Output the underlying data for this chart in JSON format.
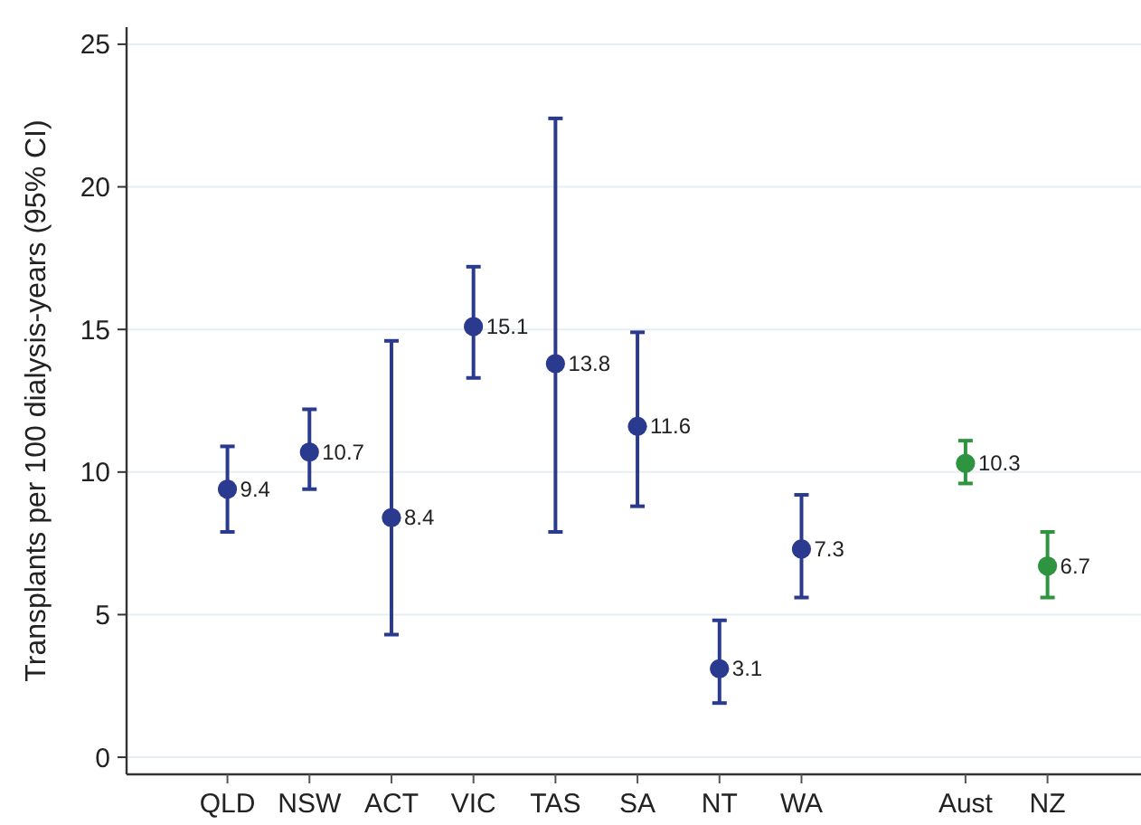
{
  "chart_data": {
    "type": "scatter",
    "ylabel": "Transplants per 100 dialysis-years (95% CI)",
    "categories": [
      "QLD",
      "NSW",
      "ACT",
      "VIC",
      "TAS",
      "SA",
      "NT",
      "WA",
      null,
      "Aust",
      "NZ"
    ],
    "series": [
      {
        "color": "#2a3a8f",
        "values": [
          9.4,
          10.7,
          8.4,
          15.1,
          13.8,
          11.6,
          3.1,
          7.3,
          null,
          null,
          null
        ],
        "errors": [
          [
            7.9,
            10.9
          ],
          [
            9.4,
            12.2
          ],
          [
            4.3,
            14.6
          ],
          [
            13.3,
            17.2
          ],
          [
            7.9,
            22.4
          ],
          [
            8.8,
            14.9
          ],
          [
            1.9,
            4.8
          ],
          [
            5.6,
            9.2
          ],
          null,
          null,
          null
        ]
      },
      {
        "color": "#2e9440",
        "values": [
          null,
          null,
          null,
          null,
          null,
          null,
          null,
          null,
          null,
          10.3,
          6.7
        ],
        "errors": [
          null,
          null,
          null,
          null,
          null,
          null,
          null,
          null,
          null,
          [
            9.6,
            11.1
          ],
          [
            5.6,
            7.9
          ]
        ]
      }
    ],
    "ylim": [
      -0.6,
      25.6
    ],
    "yticks": [
      0,
      5,
      10,
      15,
      20,
      25
    ],
    "grid": "y",
    "marker": "circle",
    "data_labels": true
  }
}
